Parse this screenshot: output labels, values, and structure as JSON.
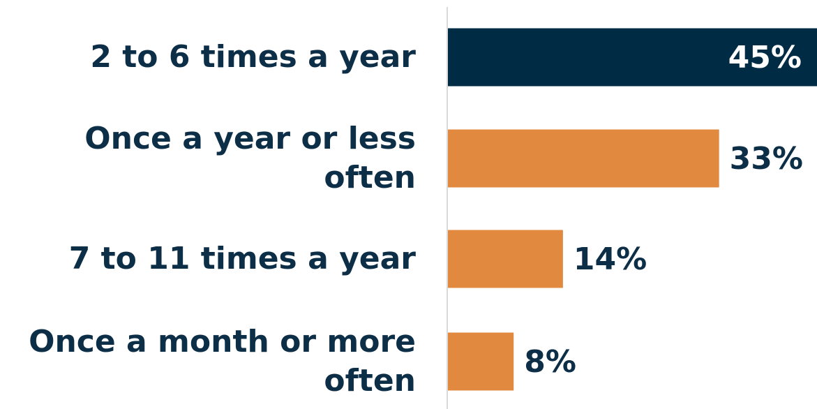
{
  "chart_data": {
    "type": "bar",
    "orientation": "horizontal",
    "categories": [
      "2 to 6 times a year",
      "Once a year or less often",
      "7 to 11 times a year",
      "Once a month or more often"
    ],
    "values": [
      45,
      33,
      14,
      8
    ],
    "value_labels": [
      "45%",
      "33%",
      "14%",
      "8%"
    ],
    "unit": "%",
    "xlim": [
      0,
      45
    ],
    "highlight_index": 0,
    "grid": false,
    "legend": "none"
  },
  "colors": {
    "highlight_bar": "#002B45",
    "bar": "#E18A3F",
    "text": "#0D2E47",
    "label_on_highlight": "#ffffff",
    "axis_line": "#d9d9d9"
  }
}
